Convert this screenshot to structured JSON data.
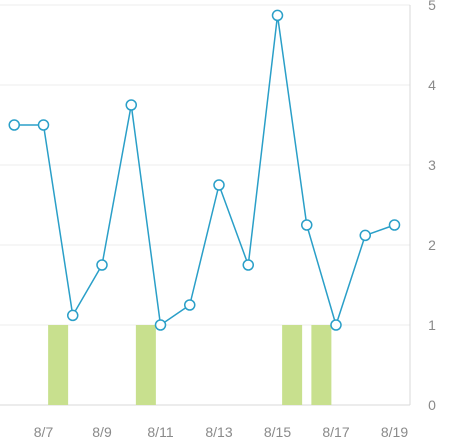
{
  "chart_data": {
    "type": "line",
    "x_ticks": [
      "8/7",
      "8/9",
      "8/11",
      "8/13",
      "8/15",
      "8/17",
      "8/19"
    ],
    "y_ticks": [
      "0",
      "1",
      "2",
      "3",
      "4",
      "5"
    ],
    "ylim": [
      0,
      5
    ],
    "grid": true,
    "axis_side": "right",
    "colors": {
      "line": "#2a9fc8",
      "bars": "#c8e08e",
      "grid": "#ececec",
      "axis": "#d9d9d9",
      "tick_text": "#8a8a8a"
    },
    "series": [
      {
        "type": "line",
        "points": [
          {
            "x": "8/6",
            "y": 3.5
          },
          {
            "x": "8/7",
            "y": 3.5
          },
          {
            "x": "8/8",
            "y": 1.12
          },
          {
            "x": "8/9",
            "y": 1.75
          },
          {
            "x": "8/10",
            "y": 3.75
          },
          {
            "x": "8/11",
            "y": 1.0
          },
          {
            "x": "8/12",
            "y": 1.25
          },
          {
            "x": "8/13",
            "y": 2.75
          },
          {
            "x": "8/14",
            "y": 1.75
          },
          {
            "x": "8/15",
            "y": 4.87
          },
          {
            "x": "8/16",
            "y": 2.25
          },
          {
            "x": "8/17",
            "y": 1.0
          },
          {
            "x": "8/18",
            "y": 2.12
          },
          {
            "x": "8/19",
            "y": 2.25
          }
        ]
      },
      {
        "type": "bar",
        "points": [
          {
            "x": "8/7.5",
            "y": 1
          },
          {
            "x": "8/10.5",
            "y": 1
          },
          {
            "x": "8/15.5",
            "y": 1
          },
          {
            "x": "8/16.5",
            "y": 1
          }
        ]
      }
    ]
  }
}
